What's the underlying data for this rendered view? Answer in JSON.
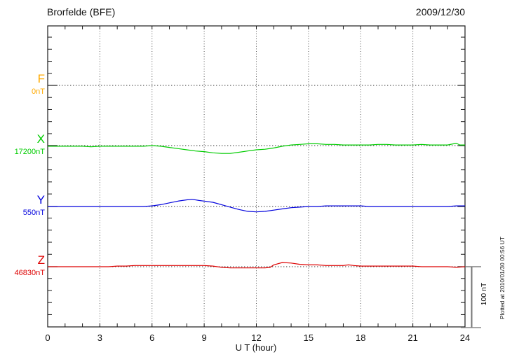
{
  "header": {
    "title": "Brorfelde (BFE)",
    "date": "2009/12/30"
  },
  "footer": {
    "plotted_at": "Plotted at 2010/01/30 00:56 UT"
  },
  "chart_data": {
    "type": "line",
    "title": "Brorfelde (BFE)",
    "date": "2009/12/30",
    "xlabel": "U T (hour)",
    "x_range": [
      0,
      24
    ],
    "x_ticks_labeled": [
      0,
      3,
      6,
      9,
      12,
      15,
      18,
      21,
      24
    ],
    "x_minor_tick_every_hours": 1,
    "y_minor_tick_nT": 20,
    "grid": {
      "vertical_dotted_every_hours": 3,
      "horizontal_dotted_at": "each channel baseline"
    },
    "scale_bar": {
      "label": "100 nT",
      "span_nT": 100
    },
    "axis_color": "#1a1a1a",
    "series": [
      {
        "name": "F",
        "baseline_label": "0nT",
        "color": "#FFAA00",
        "has_trace": false,
        "points_offset_nT": []
      },
      {
        "name": "X",
        "baseline_label": "17200nT",
        "color": "#00CC00",
        "has_trace": true,
        "points_offset_nT": [
          [
            0,
            -1
          ],
          [
            0.5,
            -1
          ],
          [
            1,
            -1
          ],
          [
            1.5,
            -1
          ],
          [
            2,
            -1
          ],
          [
            2.5,
            -2
          ],
          [
            3,
            -1
          ],
          [
            3.5,
            -1
          ],
          [
            4,
            -1
          ],
          [
            4.5,
            -1
          ],
          [
            5,
            -1
          ],
          [
            5.5,
            -1
          ],
          [
            6,
            0
          ],
          [
            6.5,
            -1
          ],
          [
            7,
            -3
          ],
          [
            7.5,
            -5
          ],
          [
            8,
            -7
          ],
          [
            8.5,
            -9
          ],
          [
            9,
            -10
          ],
          [
            9.5,
            -12
          ],
          [
            10,
            -13
          ],
          [
            10.5,
            -13
          ],
          [
            11,
            -11
          ],
          [
            11.5,
            -9
          ],
          [
            12,
            -7
          ],
          [
            12.5,
            -6
          ],
          [
            13,
            -4
          ],
          [
            13.5,
            -1
          ],
          [
            14,
            1
          ],
          [
            14.5,
            2
          ],
          [
            15,
            3
          ],
          [
            15.5,
            3
          ],
          [
            16,
            2
          ],
          [
            16.5,
            2
          ],
          [
            17,
            1
          ],
          [
            17.5,
            1
          ],
          [
            18,
            1
          ],
          [
            18.5,
            1
          ],
          [
            19,
            2
          ],
          [
            19.5,
            2
          ],
          [
            20,
            1
          ],
          [
            20.5,
            1
          ],
          [
            21,
            1
          ],
          [
            21.5,
            2
          ],
          [
            22,
            1
          ],
          [
            22.5,
            1
          ],
          [
            23,
            1
          ],
          [
            23.5,
            4
          ],
          [
            23.7,
            1
          ],
          [
            24,
            1
          ]
        ]
      },
      {
        "name": "Y",
        "baseline_label": "550nT",
        "color": "#0000DD",
        "has_trace": true,
        "points_offset_nT": [
          [
            0,
            0
          ],
          [
            0.5,
            0
          ],
          [
            1,
            0
          ],
          [
            1.5,
            0
          ],
          [
            2,
            0
          ],
          [
            2.5,
            0
          ],
          [
            3,
            0
          ],
          [
            3.5,
            0
          ],
          [
            4,
            0
          ],
          [
            4.5,
            0
          ],
          [
            5,
            0
          ],
          [
            5.5,
            0
          ],
          [
            6,
            1
          ],
          [
            6.5,
            3
          ],
          [
            7,
            6
          ],
          [
            7.5,
            9
          ],
          [
            8,
            11
          ],
          [
            8.3,
            12
          ],
          [
            8.7,
            10
          ],
          [
            9,
            9
          ],
          [
            9.5,
            7
          ],
          [
            10,
            3
          ],
          [
            10.5,
            -1
          ],
          [
            11,
            -5
          ],
          [
            11.5,
            -8
          ],
          [
            12,
            -9
          ],
          [
            12.5,
            -8
          ],
          [
            13,
            -6
          ],
          [
            13.5,
            -4
          ],
          [
            14,
            -2
          ],
          [
            14.5,
            -1
          ],
          [
            15,
            0
          ],
          [
            15.5,
            0
          ],
          [
            16,
            1
          ],
          [
            16.5,
            1
          ],
          [
            17,
            1
          ],
          [
            17.5,
            1
          ],
          [
            18,
            1
          ],
          [
            18.5,
            0
          ],
          [
            19,
            0
          ],
          [
            19.5,
            0
          ],
          [
            20,
            0
          ],
          [
            20.5,
            0
          ],
          [
            21,
            0
          ],
          [
            21.5,
            0
          ],
          [
            22,
            0
          ],
          [
            22.5,
            0
          ],
          [
            23,
            0
          ],
          [
            23.5,
            1
          ],
          [
            24,
            1
          ]
        ]
      },
      {
        "name": "Z",
        "baseline_label": "46830nT",
        "color": "#DD0000",
        "has_trace": true,
        "points_offset_nT": [
          [
            0,
            0
          ],
          [
            0.5,
            0
          ],
          [
            1,
            0
          ],
          [
            1.5,
            0
          ],
          [
            2,
            0
          ],
          [
            2.5,
            0
          ],
          [
            3,
            0
          ],
          [
            3.5,
            0
          ],
          [
            4,
            1
          ],
          [
            4.5,
            1
          ],
          [
            5,
            2
          ],
          [
            5.5,
            2
          ],
          [
            6,
            2
          ],
          [
            6.5,
            2
          ],
          [
            7,
            2
          ],
          [
            7.5,
            2
          ],
          [
            8,
            2
          ],
          [
            8.5,
            2
          ],
          [
            9,
            2
          ],
          [
            9.5,
            1
          ],
          [
            10,
            -1
          ],
          [
            10.5,
            -2
          ],
          [
            11,
            -2
          ],
          [
            11.5,
            -2
          ],
          [
            12,
            -2
          ],
          [
            12.5,
            -2
          ],
          [
            12.8,
            -1
          ],
          [
            13,
            3
          ],
          [
            13.5,
            7
          ],
          [
            14,
            6
          ],
          [
            14.5,
            4
          ],
          [
            15,
            3
          ],
          [
            15.5,
            3
          ],
          [
            16,
            2
          ],
          [
            16.5,
            2
          ],
          [
            17,
            2
          ],
          [
            17.3,
            3
          ],
          [
            17.6,
            2
          ],
          [
            18,
            1
          ],
          [
            18.5,
            1
          ],
          [
            19,
            1
          ],
          [
            19.5,
            1
          ],
          [
            20,
            1
          ],
          [
            20.5,
            1
          ],
          [
            21,
            1
          ],
          [
            21.5,
            0
          ],
          [
            22,
            0
          ],
          [
            22.5,
            0
          ],
          [
            23,
            0
          ],
          [
            23.5,
            -1
          ],
          [
            24,
            0
          ]
        ]
      }
    ]
  }
}
